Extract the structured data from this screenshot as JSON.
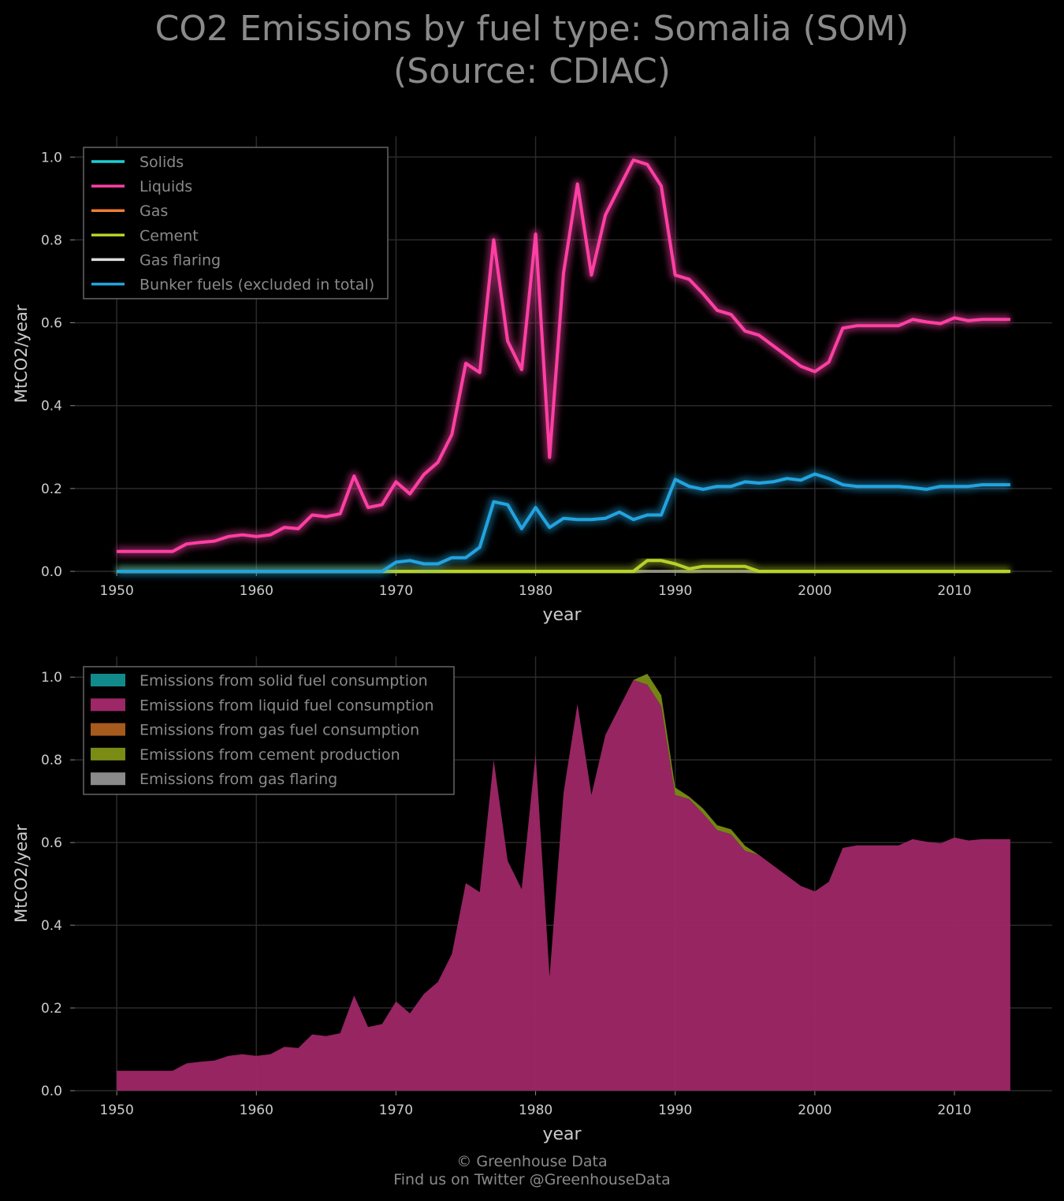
{
  "title": {
    "line1": "CO2 Emissions by fuel type: Somalia (SOM)",
    "line2": "(Source: CDIAC)"
  },
  "credits": {
    "line1": "© Greenhouse Data",
    "line2": "Find us on Twitter @GreenhouseData"
  },
  "colors": {
    "background": "#000000",
    "grid": "#2a2a2a",
    "solids": "#1ad0d6",
    "liquids": "#ff3fa4",
    "gas": "#f07c33",
    "cement": "#b7d12a",
    "gas_flaring": "#dddddd",
    "bunker": "#22a4e0",
    "area_solids": "#118a8c",
    "area_liquids": "#9e2767",
    "area_gas": "#a65a1c",
    "area_cement": "#7a8c14",
    "area_flaring": "#8a8a8a"
  },
  "chart_data": [
    {
      "type": "line",
      "xlabel": "year",
      "ylabel": "MtCO2/year",
      "xlim": [
        1947,
        2017
      ],
      "ylim": [
        0,
        1.05
      ],
      "xticks": [
        1950,
        1960,
        1970,
        1980,
        1990,
        2000,
        2010
      ],
      "yticks": [
        "0.0",
        "0.2",
        "0.4",
        "0.6",
        "0.8",
        "1.0"
      ],
      "grid": true,
      "legend_position": "top-left",
      "x": [
        1950,
        1951,
        1952,
        1953,
        1954,
        1955,
        1956,
        1957,
        1958,
        1959,
        1960,
        1961,
        1962,
        1963,
        1964,
        1965,
        1966,
        1967,
        1968,
        1969,
        1970,
        1971,
        1972,
        1973,
        1974,
        1975,
        1976,
        1977,
        1978,
        1979,
        1980,
        1981,
        1982,
        1983,
        1984,
        1985,
        1986,
        1987,
        1988,
        1989,
        1990,
        1991,
        1992,
        1993,
        1994,
        1995,
        1996,
        1997,
        1998,
        1999,
        2000,
        2001,
        2002,
        2003,
        2004,
        2005,
        2006,
        2007,
        2008,
        2009,
        2010,
        2011,
        2012,
        2013,
        2014
      ],
      "series": [
        {
          "name": "Solids",
          "color": "#1ad0d6",
          "values": [
            0,
            0,
            0,
            0,
            0,
            0,
            0,
            0,
            0,
            0,
            0,
            0,
            0,
            0,
            0,
            0,
            0,
            0,
            0,
            0,
            0,
            0,
            0,
            0,
            0,
            0,
            0,
            0,
            0,
            0,
            0,
            0,
            0,
            0,
            0,
            0,
            0,
            0,
            0,
            0,
            0,
            0,
            0,
            0,
            0,
            0,
            0,
            0,
            0,
            0,
            0,
            0,
            0,
            0,
            0,
            0,
            0,
            0,
            0,
            0,
            0,
            0,
            0,
            0,
            0
          ]
        },
        {
          "name": "Liquids",
          "color": "#ff3fa4",
          "values": [
            0.048,
            0.048,
            0.048,
            0.048,
            0.048,
            0.066,
            0.07,
            0.073,
            0.084,
            0.088,
            0.084,
            0.088,
            0.106,
            0.103,
            0.136,
            0.132,
            0.139,
            0.23,
            0.154,
            0.161,
            0.216,
            0.187,
            0.234,
            0.263,
            0.33,
            0.502,
            0.48,
            0.8,
            0.556,
            0.487,
            0.814,
            0.275,
            0.72,
            0.935,
            0.715,
            0.86,
            0.927,
            0.993,
            0.982,
            0.93,
            0.715,
            0.705,
            0.67,
            0.63,
            0.62,
            0.58,
            0.57,
            0.545,
            0.52,
            0.495,
            0.482,
            0.505,
            0.587,
            0.593,
            0.593,
            0.593,
            0.593,
            0.608,
            0.602,
            0.598,
            0.612,
            0.605,
            0.608,
            0.608,
            0.608
          ]
        },
        {
          "name": "Gas",
          "color": "#f07c33",
          "values": [
            0,
            0,
            0,
            0,
            0,
            0,
            0,
            0,
            0,
            0,
            0,
            0,
            0,
            0,
            0,
            0,
            0,
            0,
            0,
            0,
            0,
            0,
            0,
            0,
            0,
            0,
            0,
            0,
            0,
            0,
            0,
            0,
            0,
            0,
            0,
            0,
            0,
            0,
            0,
            0,
            0,
            0,
            0,
            0,
            0,
            0,
            0,
            0,
            0,
            0,
            0,
            0,
            0,
            0,
            0,
            0,
            0,
            0,
            0,
            0,
            0,
            0,
            0,
            0,
            0
          ]
        },
        {
          "name": "Cement",
          "color": "#b7d12a",
          "values": [
            0,
            0,
            0,
            0,
            0,
            0,
            0,
            0,
            0,
            0,
            0,
            0,
            0,
            0,
            0,
            0,
            0,
            0,
            0,
            0,
            0,
            0,
            0,
            0,
            0,
            0,
            0,
            0,
            0,
            0,
            0,
            0,
            0,
            0,
            0,
            0,
            0,
            0,
            0.026,
            0.026,
            0.018,
            0.006,
            0.012,
            0.012,
            0.012,
            0.012,
            0,
            0,
            0,
            0,
            0,
            0,
            0,
            0,
            0,
            0,
            0,
            0,
            0,
            0,
            0,
            0,
            0,
            0,
            0
          ]
        },
        {
          "name": "Gas flaring",
          "color": "#dddddd",
          "values": [
            0,
            0,
            0,
            0,
            0,
            0,
            0,
            0,
            0,
            0,
            0,
            0,
            0,
            0,
            0,
            0,
            0,
            0,
            0,
            0,
            0,
            0,
            0,
            0,
            0,
            0,
            0,
            0,
            0,
            0,
            0,
            0,
            0,
            0,
            0,
            0,
            0,
            0,
            0,
            0,
            0,
            0,
            0,
            0,
            0,
            0,
            0,
            0,
            0,
            0,
            0,
            0,
            0,
            0,
            0,
            0,
            0,
            0,
            0,
            0,
            0,
            0,
            0,
            0,
            0
          ]
        },
        {
          "name": "Bunker fuels (excluded in total)",
          "color": "#22a4e0",
          "values": [
            0,
            0,
            0,
            0,
            0,
            0,
            0,
            0,
            0,
            0,
            0,
            0,
            0,
            0,
            0,
            0,
            0,
            0,
            0,
            0,
            0.022,
            0.026,
            0.018,
            0.018,
            0.033,
            0.033,
            0.058,
            0.168,
            0.161,
            0.103,
            0.154,
            0.106,
            0.128,
            0.125,
            0.125,
            0.128,
            0.143,
            0.125,
            0.136,
            0.136,
            0.222,
            0.205,
            0.198,
            0.205,
            0.205,
            0.216,
            0.213,
            0.216,
            0.224,
            0.22,
            0.235,
            0.224,
            0.209,
            0.205,
            0.205,
            0.205,
            0.205,
            0.202,
            0.198,
            0.205,
            0.205,
            0.205,
            0.209,
            0.209,
            0.209
          ]
        }
      ]
    },
    {
      "type": "area",
      "stacked": true,
      "xlabel": "year",
      "ylabel": "MtCO2/year",
      "xlim": [
        1947,
        2017
      ],
      "ylim": [
        0,
        1.05
      ],
      "xticks": [
        1950,
        1960,
        1970,
        1980,
        1990,
        2000,
        2010
      ],
      "yticks": [
        "0.0",
        "0.2",
        "0.4",
        "0.6",
        "0.8",
        "1.0"
      ],
      "grid": true,
      "legend_position": "top-left",
      "series_order": [
        {
          "name": "Emissions from solid fuel consumption",
          "key": "Solids",
          "color": "#118a8c"
        },
        {
          "name": "Emissions from liquid fuel consumption",
          "key": "Liquids",
          "color": "#9e2767"
        },
        {
          "name": "Emissions from gas fuel consumption",
          "key": "Gas",
          "color": "#a65a1c"
        },
        {
          "name": "Emissions from cement production",
          "key": "Cement",
          "color": "#7a8c14"
        },
        {
          "name": "Emissions from gas flaring",
          "key": "Gas flaring",
          "color": "#8a8a8a"
        }
      ]
    }
  ]
}
